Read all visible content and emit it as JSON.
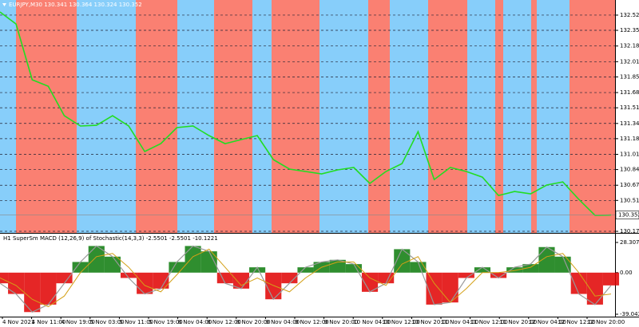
{
  "main_chart": {
    "type": "line",
    "header": "EURJPY,M30  130.341 130.364 130.324 130.352",
    "color": "#22dd22",
    "ylim": [
      130.158,
      132.684
    ],
    "yticks": [
      {
        "value": 132.52,
        "label": "132.520"
      },
      132.355,
      132.185,
      132.015,
      {
        "value": 131.85,
        "label": "131.850"
      },
      {
        "value": 131.68,
        "label": "131.680"
      },
      131.515,
      131.345,
      {
        "value": 131.18,
        "label": "131.180"
      },
      {
        "value": 131.01,
        "label": "131.010"
      },
      130.845,
      130.675,
      {
        "value": 130.51,
        "label": "130.510"
      },
      130.175
    ],
    "grid": true,
    "current_price": 130.352,
    "values": [
      132.554,
      132.424,
      131.819,
      131.749,
      131.429,
      131.317,
      131.325,
      131.429,
      131.317,
      131.04,
      131.126,
      131.3,
      131.317,
      131.213,
      131.126,
      131.17,
      131.213,
      130.953,
      130.85,
      130.824,
      130.798,
      130.841,
      130.867,
      130.694,
      130.824,
      130.91,
      131.256,
      130.737,
      130.867,
      130.824,
      130.763,
      130.564,
      130.607,
      130.581,
      130.677,
      130.711,
      130.521,
      130.348,
      130.352
    ]
  },
  "indicator": {
    "type": "bar",
    "header": "H1 SuperSm MACD (12,26,9) of Stochastic(14,3,3) -2.5501 -2.5501 -10.1221",
    "ylim": [
      -39.0422,
      28.3076
    ],
    "yticks": [
      28.3076,
      {
        "value": 0,
        "label": "0.00"
      },
      -39.0422
    ],
    "up_color": "#0a7a0a",
    "down_color": "#e00000",
    "signal_color": "#d4a017",
    "values": [
      -10,
      -20,
      -37,
      -30,
      -10,
      10,
      25,
      15,
      -5,
      -20,
      -15,
      10,
      25,
      20,
      -10,
      -15,
      5,
      -25,
      -10,
      5,
      10,
      12,
      8,
      -18,
      -10,
      22,
      10,
      -30,
      -28,
      -5,
      5,
      -5,
      5,
      8,
      24,
      15,
      -20,
      -30,
      -12
    ],
    "signal": [
      -5,
      -12,
      -25,
      -32,
      -22,
      0,
      15,
      18,
      5,
      -12,
      -18,
      -2,
      15,
      22,
      5,
      -12,
      -5,
      -12,
      -18,
      -5,
      5,
      10,
      10,
      -5,
      -12,
      8,
      15,
      -10,
      -28,
      -15,
      0,
      0,
      2,
      5,
      15,
      18,
      0,
      -22,
      -20
    ]
  },
  "time_axis": [
    "4 Nov 2021",
    "4 Nov 11:00",
    "4 Nov 19:00",
    "5 Nov 03:00",
    "5 Nov 11:00",
    "5 Nov 19:00",
    "8 Nov 04:00",
    "8 Nov 12:00",
    "8 Nov 20:00",
    "9 Nov 04:00",
    "9 Nov 12:00",
    "9 Nov 20:00",
    "10 Nov 04:00",
    "10 Nov 12:00",
    "10 Nov 20:00",
    "11 Nov 04:00",
    "11 Nov 12:00",
    "11 Nov 20:00",
    "12 Nov 04:00",
    "12 Nov 12:00",
    "12 Nov 20:00"
  ]
}
